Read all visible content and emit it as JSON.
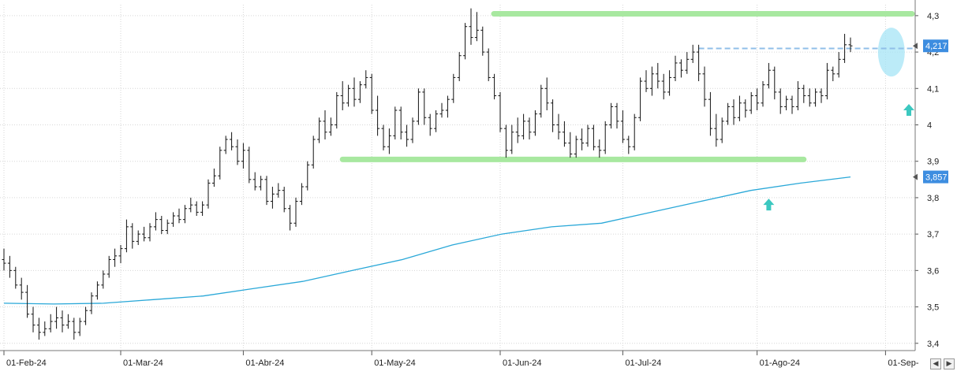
{
  "chart_data": {
    "type": "bar",
    "ohlc_style": true,
    "title": "",
    "xlabel": "",
    "ylabel": "",
    "ylim": [
      3.38,
      4.33
    ],
    "y_ticks": [
      3.4,
      3.5,
      3.6,
      3.7,
      3.8,
      3.9,
      4.0,
      4.1,
      4.2,
      4.3
    ],
    "y_tick_labels": [
      "3,4",
      "3,5",
      "3,6",
      "3,7",
      "3,8",
      "3,9",
      "4",
      "4,1",
      "4,2",
      "4,3"
    ],
    "x_tick_labels": [
      "01-Feb-24",
      "01-Mar-24",
      "01-Abr-24",
      "01-May-24",
      "01-Jun-24",
      "01-Jul-24",
      "01-Ago-24",
      "01-Sep-"
    ],
    "x_tick_bar_index": [
      0,
      20,
      41,
      63,
      85,
      106,
      129,
      151
    ],
    "grid": true,
    "legend": "none",
    "colors": {
      "bars": "#111111",
      "moving_average": "#2aa8d8",
      "support_resistance": "#a8e8a0",
      "dashed_level": "#90bfe8",
      "arrows": "#3cc8c0",
      "highlight_ellipse": "#a6e4f5",
      "price_badge": "#3d8de0",
      "grid": "#d6d6d6"
    },
    "series": [
      {
        "kind": "ohlc",
        "values": [
          {
            "o": 3.63,
            "h": 3.66,
            "l": 3.6,
            "c": 3.62
          },
          {
            "o": 3.62,
            "h": 3.64,
            "l": 3.58,
            "c": 3.6
          },
          {
            "o": 3.6,
            "h": 3.61,
            "l": 3.55,
            "c": 3.56
          },
          {
            "o": 3.56,
            "h": 3.58,
            "l": 3.52,
            "c": 3.54
          },
          {
            "o": 3.54,
            "h": 3.56,
            "l": 3.47,
            "c": 3.48
          },
          {
            "o": 3.48,
            "h": 3.5,
            "l": 3.43,
            "c": 3.45
          },
          {
            "o": 3.45,
            "h": 3.47,
            "l": 3.41,
            "c": 3.43
          },
          {
            "o": 3.43,
            "h": 3.46,
            "l": 3.42,
            "c": 3.44
          },
          {
            "o": 3.44,
            "h": 3.48,
            "l": 3.43,
            "c": 3.46
          },
          {
            "o": 3.46,
            "h": 3.5,
            "l": 3.44,
            "c": 3.47
          },
          {
            "o": 3.47,
            "h": 3.49,
            "l": 3.43,
            "c": 3.45
          },
          {
            "o": 3.45,
            "h": 3.48,
            "l": 3.44,
            "c": 3.46
          },
          {
            "o": 3.46,
            "h": 3.47,
            "l": 3.41,
            "c": 3.43
          },
          {
            "o": 3.43,
            "h": 3.47,
            "l": 3.42,
            "c": 3.46
          },
          {
            "o": 3.46,
            "h": 3.5,
            "l": 3.45,
            "c": 3.49
          },
          {
            "o": 3.49,
            "h": 3.54,
            "l": 3.48,
            "c": 3.53
          },
          {
            "o": 3.53,
            "h": 3.57,
            "l": 3.52,
            "c": 3.56
          },
          {
            "o": 3.56,
            "h": 3.6,
            "l": 3.55,
            "c": 3.59
          },
          {
            "o": 3.59,
            "h": 3.64,
            "l": 3.58,
            "c": 3.63
          },
          {
            "o": 3.63,
            "h": 3.66,
            "l": 3.61,
            "c": 3.64
          },
          {
            "o": 3.64,
            "h": 3.67,
            "l": 3.62,
            "c": 3.66
          },
          {
            "o": 3.66,
            "h": 3.74,
            "l": 3.65,
            "c": 3.72
          },
          {
            "o": 3.72,
            "h": 3.73,
            "l": 3.66,
            "c": 3.68
          },
          {
            "o": 3.68,
            "h": 3.71,
            "l": 3.67,
            "c": 3.7
          },
          {
            "o": 3.7,
            "h": 3.72,
            "l": 3.68,
            "c": 3.69
          },
          {
            "o": 3.69,
            "h": 3.73,
            "l": 3.68,
            "c": 3.72
          },
          {
            "o": 3.72,
            "h": 3.76,
            "l": 3.71,
            "c": 3.74
          },
          {
            "o": 3.74,
            "h": 3.75,
            "l": 3.7,
            "c": 3.71
          },
          {
            "o": 3.71,
            "h": 3.74,
            "l": 3.7,
            "c": 3.73
          },
          {
            "o": 3.73,
            "h": 3.76,
            "l": 3.72,
            "c": 3.75
          },
          {
            "o": 3.75,
            "h": 3.77,
            "l": 3.73,
            "c": 3.74
          },
          {
            "o": 3.74,
            "h": 3.78,
            "l": 3.73,
            "c": 3.77
          },
          {
            "o": 3.77,
            "h": 3.8,
            "l": 3.76,
            "c": 3.78
          },
          {
            "o": 3.78,
            "h": 3.79,
            "l": 3.75,
            "c": 3.76
          },
          {
            "o": 3.76,
            "h": 3.79,
            "l": 3.75,
            "c": 3.78
          },
          {
            "o": 3.78,
            "h": 3.85,
            "l": 3.77,
            "c": 3.84
          },
          {
            "o": 3.84,
            "h": 3.88,
            "l": 3.83,
            "c": 3.86
          },
          {
            "o": 3.86,
            "h": 3.94,
            "l": 3.85,
            "c": 3.93
          },
          {
            "o": 3.93,
            "h": 3.97,
            "l": 3.92,
            "c": 3.96
          },
          {
            "o": 3.96,
            "h": 3.98,
            "l": 3.93,
            "c": 3.94
          },
          {
            "o": 3.94,
            "h": 3.96,
            "l": 3.89,
            "c": 3.9
          },
          {
            "o": 3.9,
            "h": 3.95,
            "l": 3.88,
            "c": 3.93
          },
          {
            "o": 3.93,
            "h": 3.94,
            "l": 3.84,
            "c": 3.85
          },
          {
            "o": 3.85,
            "h": 3.87,
            "l": 3.82,
            "c": 3.83
          },
          {
            "o": 3.83,
            "h": 3.86,
            "l": 3.82,
            "c": 3.85
          },
          {
            "o": 3.85,
            "h": 3.86,
            "l": 3.78,
            "c": 3.79
          },
          {
            "o": 3.79,
            "h": 3.83,
            "l": 3.77,
            "c": 3.81
          },
          {
            "o": 3.81,
            "h": 3.84,
            "l": 3.8,
            "c": 3.82
          },
          {
            "o": 3.82,
            "h": 3.83,
            "l": 3.76,
            "c": 3.77
          },
          {
            "o": 3.77,
            "h": 3.78,
            "l": 3.71,
            "c": 3.73
          },
          {
            "o": 3.73,
            "h": 3.8,
            "l": 3.72,
            "c": 3.79
          },
          {
            "o": 3.79,
            "h": 3.84,
            "l": 3.78,
            "c": 3.83
          },
          {
            "o": 3.83,
            "h": 3.9,
            "l": 3.82,
            "c": 3.89
          },
          {
            "o": 3.89,
            "h": 3.97,
            "l": 3.88,
            "c": 3.96
          },
          {
            "o": 3.96,
            "h": 4.02,
            "l": 3.95,
            "c": 4.01
          },
          {
            "o": 4.01,
            "h": 4.04,
            "l": 3.96,
            "c": 3.98
          },
          {
            "o": 3.98,
            "h": 4.02,
            "l": 3.97,
            "c": 4.0
          },
          {
            "o": 4.0,
            "h": 4.09,
            "l": 3.99,
            "c": 4.08
          },
          {
            "o": 4.08,
            "h": 4.12,
            "l": 4.04,
            "c": 4.06
          },
          {
            "o": 4.06,
            "h": 4.11,
            "l": 4.05,
            "c": 4.1
          },
          {
            "o": 4.1,
            "h": 4.13,
            "l": 4.05,
            "c": 4.07
          },
          {
            "o": 4.07,
            "h": 4.12,
            "l": 4.06,
            "c": 4.11
          },
          {
            "o": 4.11,
            "h": 4.15,
            "l": 4.1,
            "c": 4.13
          },
          {
            "o": 4.13,
            "h": 4.14,
            "l": 4.03,
            "c": 4.04
          },
          {
            "o": 4.04,
            "h": 4.08,
            "l": 3.97,
            "c": 3.99
          },
          {
            "o": 3.99,
            "h": 4.0,
            "l": 3.93,
            "c": 3.94
          },
          {
            "o": 3.94,
            "h": 3.99,
            "l": 3.92,
            "c": 3.97
          },
          {
            "o": 3.97,
            "h": 4.05,
            "l": 3.96,
            "c": 4.04
          },
          {
            "o": 4.04,
            "h": 4.05,
            "l": 3.96,
            "c": 3.98
          },
          {
            "o": 3.98,
            "h": 4.0,
            "l": 3.94,
            "c": 3.96
          },
          {
            "o": 3.96,
            "h": 4.02,
            "l": 3.95,
            "c": 4.01
          },
          {
            "o": 4.01,
            "h": 4.1,
            "l": 4.0,
            "c": 4.09
          },
          {
            "o": 4.09,
            "h": 4.1,
            "l": 4.0,
            "c": 4.02
          },
          {
            "o": 4.02,
            "h": 4.03,
            "l": 3.97,
            "c": 3.99
          },
          {
            "o": 3.99,
            "h": 4.04,
            "l": 3.98,
            "c": 4.03
          },
          {
            "o": 4.03,
            "h": 4.06,
            "l": 4.02,
            "c": 4.04
          },
          {
            "o": 4.04,
            "h": 4.08,
            "l": 4.02,
            "c": 4.07
          },
          {
            "o": 4.07,
            "h": 4.14,
            "l": 4.06,
            "c": 4.13
          },
          {
            "o": 4.13,
            "h": 4.2,
            "l": 4.12,
            "c": 4.19
          },
          {
            "o": 4.19,
            "h": 4.28,
            "l": 4.18,
            "c": 4.27
          },
          {
            "o": 4.27,
            "h": 4.32,
            "l": 4.22,
            "c": 4.24
          },
          {
            "o": 4.24,
            "h": 4.31,
            "l": 4.23,
            "c": 4.26
          },
          {
            "o": 4.26,
            "h": 4.27,
            "l": 4.19,
            "c": 4.2
          },
          {
            "o": 4.2,
            "h": 4.21,
            "l": 4.12,
            "c": 4.13
          },
          {
            "o": 4.13,
            "h": 4.14,
            "l": 4.07,
            "c": 4.08
          },
          {
            "o": 4.08,
            "h": 4.09,
            "l": 3.98,
            "c": 3.99
          },
          {
            "o": 3.99,
            "h": 4.0,
            "l": 3.91,
            "c": 3.93
          },
          {
            "o": 3.93,
            "h": 4.0,
            "l": 3.92,
            "c": 3.98
          },
          {
            "o": 3.98,
            "h": 4.02,
            "l": 3.95,
            "c": 3.97
          },
          {
            "o": 3.97,
            "h": 4.03,
            "l": 3.96,
            "c": 4.01
          },
          {
            "o": 4.01,
            "h": 4.02,
            "l": 3.96,
            "c": 3.98
          },
          {
            "o": 3.98,
            "h": 4.04,
            "l": 3.97,
            "c": 4.03
          },
          {
            "o": 4.03,
            "h": 4.11,
            "l": 4.02,
            "c": 4.1
          },
          {
            "o": 4.1,
            "h": 4.13,
            "l": 4.04,
            "c": 4.06
          },
          {
            "o": 4.06,
            "h": 4.07,
            "l": 3.98,
            "c": 4.0
          },
          {
            "o": 4.0,
            "h": 4.03,
            "l": 3.96,
            "c": 3.98
          },
          {
            "o": 3.98,
            "h": 4.01,
            "l": 3.94,
            "c": 3.95
          },
          {
            "o": 3.95,
            "h": 3.98,
            "l": 3.91,
            "c": 3.92
          },
          {
            "o": 3.92,
            "h": 3.97,
            "l": 3.91,
            "c": 3.96
          },
          {
            "o": 3.96,
            "h": 3.99,
            "l": 3.93,
            "c": 3.95
          },
          {
            "o": 3.95,
            "h": 4.0,
            "l": 3.94,
            "c": 3.99
          },
          {
            "o": 3.99,
            "h": 4.0,
            "l": 3.93,
            "c": 3.94
          },
          {
            "o": 3.94,
            "h": 3.96,
            "l": 3.91,
            "c": 3.93
          },
          {
            "o": 3.93,
            "h": 4.01,
            "l": 3.92,
            "c": 4.0
          },
          {
            "o": 4.0,
            "h": 4.06,
            "l": 3.99,
            "c": 4.05
          },
          {
            "o": 4.05,
            "h": 4.06,
            "l": 3.99,
            "c": 4.01
          },
          {
            "o": 4.01,
            "h": 4.04,
            "l": 3.95,
            "c": 3.96
          },
          {
            "o": 3.96,
            "h": 3.97,
            "l": 3.92,
            "c": 3.94
          },
          {
            "o": 3.94,
            "h": 4.03,
            "l": 3.93,
            "c": 4.02
          },
          {
            "o": 4.02,
            "h": 4.13,
            "l": 4.01,
            "c": 4.12
          },
          {
            "o": 4.12,
            "h": 4.15,
            "l": 4.09,
            "c": 4.1
          },
          {
            "o": 4.1,
            "h": 4.16,
            "l": 4.08,
            "c": 4.14
          },
          {
            "o": 4.14,
            "h": 4.17,
            "l": 4.1,
            "c": 4.12
          },
          {
            "o": 4.12,
            "h": 4.14,
            "l": 4.07,
            "c": 4.09
          },
          {
            "o": 4.09,
            "h": 4.15,
            "l": 4.08,
            "c": 4.13
          },
          {
            "o": 4.13,
            "h": 4.19,
            "l": 4.12,
            "c": 4.17
          },
          {
            "o": 4.17,
            "h": 4.18,
            "l": 4.13,
            "c": 4.15
          },
          {
            "o": 4.15,
            "h": 4.2,
            "l": 4.14,
            "c": 4.18
          },
          {
            "o": 4.18,
            "h": 4.22,
            "l": 4.17,
            "c": 4.2
          },
          {
            "o": 4.2,
            "h": 4.22,
            "l": 4.12,
            "c": 4.14
          },
          {
            "o": 4.14,
            "h": 4.16,
            "l": 4.05,
            "c": 4.07
          },
          {
            "o": 4.07,
            "h": 4.09,
            "l": 3.97,
            "c": 3.99
          },
          {
            "o": 3.99,
            "h": 4.03,
            "l": 3.94,
            "c": 3.96
          },
          {
            "o": 3.96,
            "h": 4.02,
            "l": 3.95,
            "c": 4.01
          },
          {
            "o": 4.01,
            "h": 4.06,
            "l": 4.0,
            "c": 4.05
          },
          {
            "o": 4.05,
            "h": 4.07,
            "l": 4.0,
            "c": 4.02
          },
          {
            "o": 4.02,
            "h": 4.08,
            "l": 4.01,
            "c": 4.06
          },
          {
            "o": 4.06,
            "h": 4.07,
            "l": 4.02,
            "c": 4.04
          },
          {
            "o": 4.04,
            "h": 4.09,
            "l": 4.03,
            "c": 4.08
          },
          {
            "o": 4.08,
            "h": 4.1,
            "l": 4.04,
            "c": 4.06
          },
          {
            "o": 4.06,
            "h": 4.12,
            "l": 4.05,
            "c": 4.11
          },
          {
            "o": 4.11,
            "h": 4.17,
            "l": 4.1,
            "c": 4.15
          },
          {
            "o": 4.15,
            "h": 4.16,
            "l": 4.07,
            "c": 4.09
          },
          {
            "o": 4.09,
            "h": 4.1,
            "l": 4.03,
            "c": 4.05
          },
          {
            "o": 4.05,
            "h": 4.08,
            "l": 4.04,
            "c": 4.07
          },
          {
            "o": 4.07,
            "h": 4.08,
            "l": 4.03,
            "c": 4.05
          },
          {
            "o": 4.05,
            "h": 4.12,
            "l": 4.04,
            "c": 4.1
          },
          {
            "o": 4.1,
            "h": 4.11,
            "l": 4.06,
            "c": 4.08
          },
          {
            "o": 4.08,
            "h": 4.1,
            "l": 4.05,
            "c": 4.06
          },
          {
            "o": 4.06,
            "h": 4.1,
            "l": 4.05,
            "c": 4.09
          },
          {
            "o": 4.09,
            "h": 4.1,
            "l": 4.06,
            "c": 4.08
          },
          {
            "o": 4.08,
            "h": 4.17,
            "l": 4.07,
            "c": 4.15
          },
          {
            "o": 4.15,
            "h": 4.16,
            "l": 4.12,
            "c": 4.14
          },
          {
            "o": 4.14,
            "h": 4.2,
            "l": 4.13,
            "c": 4.18
          },
          {
            "o": 4.18,
            "h": 4.25,
            "l": 4.17,
            "c": 4.22
          },
          {
            "o": 4.22,
            "h": 4.24,
            "l": 4.2,
            "c": 4.217
          }
        ]
      },
      {
        "kind": "line",
        "values": [
          3.51,
          3.508,
          3.51,
          3.52,
          3.53,
          3.55,
          3.57,
          3.6,
          3.63,
          3.67,
          3.7,
          3.72,
          3.73,
          3.76,
          3.79,
          3.82,
          3.84,
          3.857
        ]
      }
    ],
    "annotations": {
      "resistance": 4.305,
      "support": 3.905,
      "dashed_level": 4.21,
      "current_price_label": "4,217",
      "moving_average_label": "3,857",
      "arrows": [
        {
          "bar_index": 0,
          "y": 3.78
        },
        {
          "bar_index": 0,
          "y": 4.04
        }
      ],
      "arrow_bar_index": [
        131,
        155
      ],
      "ellipse": {
        "bar_index": 152,
        "y": 4.2
      }
    }
  }
}
